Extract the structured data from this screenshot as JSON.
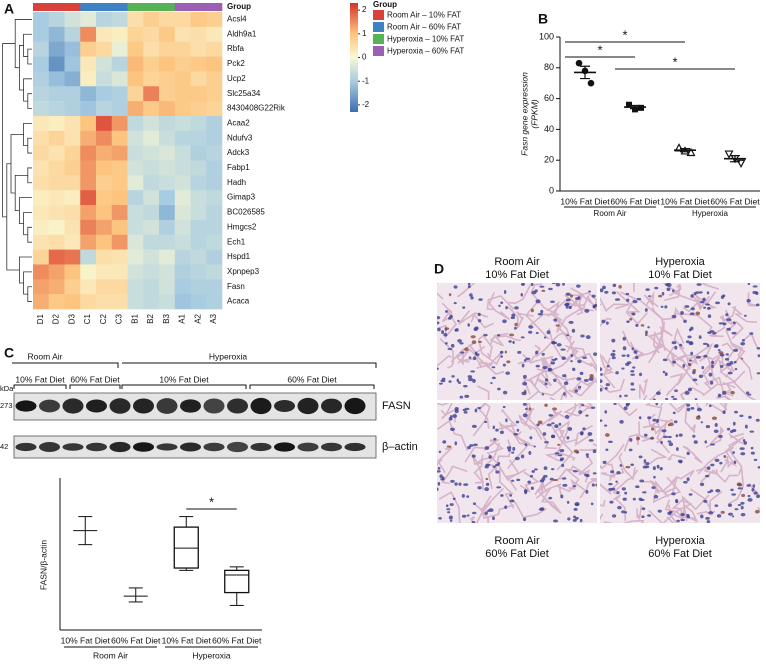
{
  "panel_labels": [
    "A",
    "B",
    "C",
    "D"
  ],
  "chart_data": [
    {
      "type": "heatmap",
      "annotation_label": "Group",
      "rows": [
        "Acsl4",
        "Aldh9a1",
        "Rbfa",
        "Pck2",
        "Ucp2",
        "Slc25a34",
        "8430408G22Rik",
        "Acaa2",
        "Ndufv3",
        "Adck3",
        "Fabp1",
        "Hadh",
        "Gimap3",
        "BC026585",
        "Hmgcs2",
        "Ech1",
        "Hspd1",
        "Xpnpep3",
        "Fasn",
        "Acaca"
      ],
      "columns": [
        "D1",
        "D2",
        "D3",
        "C1",
        "C2",
        "C3",
        "B1",
        "B2",
        "B3",
        "A1",
        "A2",
        "A3"
      ],
      "values": [
        [
          -1.0,
          -0.8,
          -0.5,
          -0.3,
          -0.8,
          -0.7,
          0.5,
          0.8,
          0.6,
          0.6,
          0.9,
          0.8
        ],
        [
          -1.0,
          -1.3,
          -0.8,
          1.5,
          0.3,
          0.2,
          0.7,
          0.6,
          0.9,
          0.4,
          0.5,
          0.3
        ],
        [
          -0.8,
          -1.5,
          -1.2,
          0.8,
          0.6,
          -0.2,
          0.9,
          0.5,
          0.7,
          0.7,
          0.5,
          0.6
        ],
        [
          -1.0,
          -1.8,
          -1.1,
          0.3,
          -0.5,
          -0.8,
          1.1,
          0.8,
          1.0,
          0.8,
          0.9,
          1.0
        ],
        [
          -0.9,
          -1.2,
          -1.4,
          0.2,
          -0.6,
          -0.4,
          1.0,
          0.7,
          0.8,
          0.9,
          0.6,
          0.8
        ],
        [
          -0.8,
          -0.9,
          -0.9,
          -1.3,
          -1.0,
          -0.9,
          0.7,
          1.6,
          0.8,
          0.9,
          0.9,
          0.8
        ],
        [
          -0.7,
          -0.8,
          -0.9,
          -1.1,
          -0.8,
          -0.9,
          1.2,
          0.9,
          1.1,
          0.9,
          0.8,
          0.7
        ],
        [
          0.3,
          0.2,
          0.4,
          1.0,
          2.0,
          1.4,
          -0.7,
          -0.5,
          -0.7,
          -0.6,
          -0.7,
          -0.9
        ],
        [
          0.5,
          0.7,
          0.4,
          1.2,
          1.5,
          1.0,
          -0.5,
          -0.3,
          -0.6,
          -0.8,
          -0.8,
          -0.9
        ],
        [
          0.6,
          0.4,
          0.7,
          1.5,
          1.2,
          1.3,
          -0.6,
          -0.5,
          -0.4,
          -0.6,
          -0.9,
          -0.8
        ],
        [
          0.4,
          0.6,
          0.8,
          1.4,
          1.0,
          0.9,
          -0.5,
          -0.6,
          -0.5,
          -0.6,
          -0.7,
          -0.9
        ],
        [
          0.5,
          0.6,
          0.6,
          1.4,
          0.8,
          0.9,
          -0.3,
          -0.7,
          -0.6,
          -0.5,
          -0.8,
          -0.9
        ],
        [
          0.2,
          0.3,
          0.2,
          1.9,
          0.9,
          1.0,
          -0.8,
          -0.5,
          -1.0,
          -0.3,
          -0.6,
          -0.7
        ],
        [
          0.3,
          0.4,
          0.5,
          1.3,
          1.0,
          1.4,
          -0.6,
          -0.7,
          -1.3,
          -0.4,
          -0.6,
          -0.8
        ],
        [
          0.2,
          0.1,
          0.4,
          1.6,
          1.3,
          1.0,
          -0.6,
          -0.5,
          -0.9,
          -0.5,
          -0.8,
          -0.8
        ],
        [
          0.4,
          0.5,
          0.3,
          1.3,
          1.0,
          1.4,
          -0.4,
          -0.7,
          -0.7,
          -0.6,
          -0.8,
          -0.7
        ],
        [
          0.7,
          1.8,
          1.7,
          -0.7,
          0.5,
          0.4,
          -0.3,
          -0.5,
          -0.3,
          -0.8,
          -0.7,
          -0.9
        ],
        [
          1.5,
          1.3,
          1.0,
          0.1,
          0.3,
          0.3,
          -0.5,
          -0.6,
          -0.5,
          -0.9,
          -0.8,
          -0.7
        ],
        [
          1.3,
          1.2,
          0.8,
          0.3,
          0.6,
          0.6,
          -0.6,
          -0.7,
          -0.5,
          -1.0,
          -0.9,
          -0.9
        ],
        [
          1.2,
          0.9,
          1.0,
          0.6,
          0.5,
          0.5,
          -0.6,
          -0.7,
          -0.6,
          -1.1,
          -1.0,
          -0.9
        ]
      ],
      "zlim": [
        -2.3,
        2.3
      ],
      "zticks": [
        2,
        1,
        0,
        -1,
        -2
      ],
      "color_stops": [
        [
          -2.3,
          "#3b6fb0"
        ],
        [
          -1,
          "#a8cce2"
        ],
        [
          0,
          "#f9f8d2"
        ],
        [
          1,
          "#fdc47f"
        ],
        [
          2.3,
          "#d6322a"
        ]
      ],
      "legend_title": "Group",
      "groups": [
        {
          "name": "Room Air – 10% FAT",
          "color": "#d9413c",
          "columns": [
            "D1",
            "D2",
            "D3"
          ]
        },
        {
          "name": "Room Air – 60% FAT",
          "color": "#3e82c3",
          "columns": [
            "C1",
            "C2",
            "C3"
          ]
        },
        {
          "name": "Hyperoxia – 10% FAT",
          "color": "#55b356",
          "columns": [
            "B1",
            "B2",
            "B3"
          ]
        },
        {
          "name": "Hyperoxia – 60% FAT",
          "color": "#9b5fb4",
          "columns": [
            "A1",
            "A2",
            "A3"
          ]
        }
      ]
    },
    {
      "type": "dot_plot",
      "ylabel": "Fasn gene expression",
      "ylabel_unit": "(FPKM)",
      "categories": [
        "10% Fat Diet",
        "60% Fat Diet",
        "10% Fat Diet",
        "60% Fat Diet"
      ],
      "groups": [
        {
          "name": "Room Air",
          "span": [
            0,
            1
          ]
        },
        {
          "name": "Hyperoxia",
          "span": [
            2,
            3
          ]
        }
      ],
      "markers": [
        "circle",
        "square",
        "triangle",
        "triangle-down"
      ],
      "color": "#111111",
      "points": [
        [
          83,
          78,
          70
        ],
        [
          56,
          53,
          54
        ],
        [
          28,
          26,
          25
        ],
        [
          24,
          21,
          18
        ]
      ],
      "means": [
        77,
        54.5,
        26.5,
        21
      ],
      "sems": [
        4,
        1,
        1,
        2
      ],
      "ylim": [
        0,
        100
      ],
      "yticks": [
        0,
        20,
        40,
        60,
        80,
        100
      ],
      "annotations": [
        {
          "text": "*",
          "between": [
            0,
            1
          ]
        },
        {
          "text": "*",
          "between": [
            0,
            2
          ]
        },
        {
          "text": "*",
          "between": [
            1,
            3
          ]
        }
      ]
    },
    {
      "type": "box",
      "ylabel": "FASN/β-actin",
      "categories": [
        "10% Fat Diet",
        "60% Fat Diet",
        "10% Fat Diet",
        "60% Fat Diet"
      ],
      "groups": [
        {
          "name": "Room Air",
          "span": [
            0,
            1
          ]
        },
        {
          "name": "Hyperoxia",
          "span": [
            2,
            3
          ]
        }
      ],
      "boxes": [
        {
          "min": 0.73,
          "median": 0.85,
          "max": 0.97
        },
        {
          "min": 0.24,
          "median": 0.29,
          "max": 0.36
        },
        {
          "min": 0.51,
          "q1": 0.53,
          "median": 0.7,
          "q3": 0.88,
          "max": 0.97
        },
        {
          "min": 0.21,
          "q1": 0.32,
          "median": 0.47,
          "q3": 0.51,
          "max": 0.54
        }
      ],
      "ylim": [
        0,
        1.3
      ],
      "annotations": [
        {
          "text": "*",
          "between": [
            2,
            3
          ]
        }
      ]
    }
  ],
  "blot": {
    "groups": [
      {
        "name": "Room Air",
        "diets": [
          "10% Fat Diet",
          "60% Fat Diet"
        ]
      },
      {
        "name": "Hyperoxia",
        "diets": [
          "10% Fat Diet",
          "60% Fat Diet"
        ]
      }
    ],
    "kda_label": "kDa",
    "bands": [
      {
        "name": "FASN",
        "kda": 273
      },
      {
        "name": "β–actin",
        "kda": 42
      }
    ]
  },
  "histology": [
    {
      "condition": "Room Air",
      "diet": "10% Fat Diet"
    },
    {
      "condition": "Hyperoxia",
      "diet": "10% Fat Diet"
    },
    {
      "condition": "Room Air",
      "diet": "60% Fat Diet"
    },
    {
      "condition": "Hyperoxia",
      "diet": "60% Fat Diet"
    }
  ]
}
